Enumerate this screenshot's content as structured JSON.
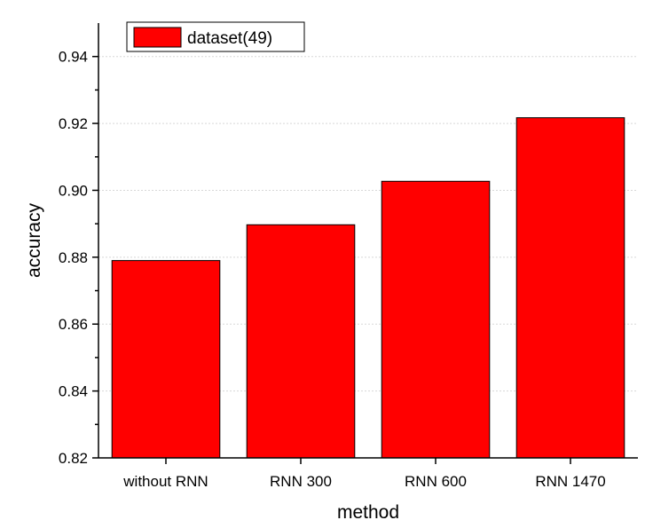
{
  "chart_data": {
    "type": "bar",
    "categories": [
      "without RNN",
      "RNN 300",
      "RNN 600",
      "RNN 1470"
    ],
    "series": [
      {
        "name": "dataset(49)",
        "values": [
          0.879,
          0.8897,
          0.9027,
          0.9217
        ],
        "color": "#ff0000"
      }
    ],
    "xlabel": "method",
    "ylabel": "accuracy",
    "ylim": [
      0.82,
      0.95
    ],
    "yticks": [
      "0.82",
      "0.84",
      "0.86",
      "0.88",
      "0.90",
      "0.92",
      "0.94"
    ],
    "grid": true,
    "legend_position": "top-left"
  }
}
